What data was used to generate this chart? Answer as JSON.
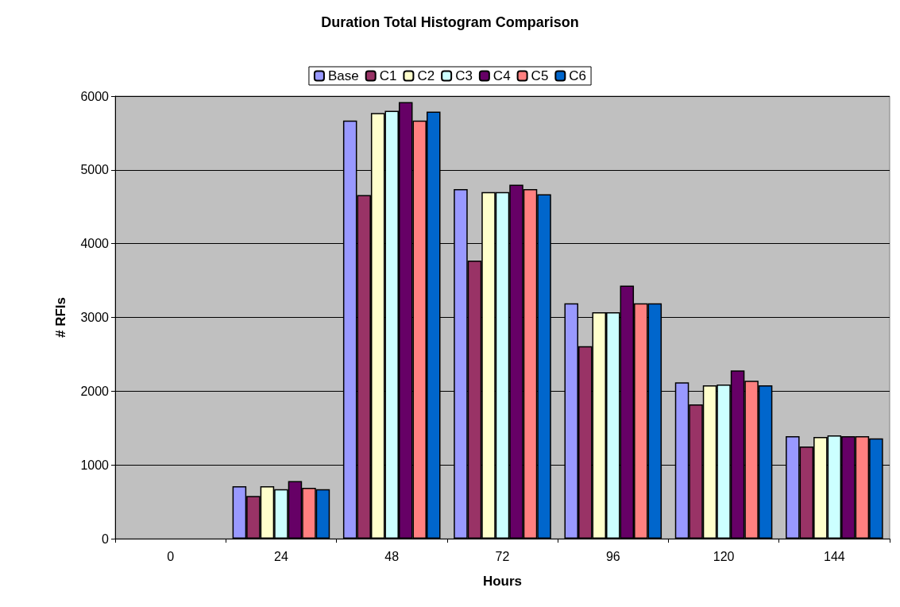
{
  "chart_data": {
    "type": "bar",
    "title": "Duration Total Histogram Comparison",
    "xlabel": "Hours",
    "ylabel": "# RFIs",
    "categories": [
      "0",
      "24",
      "48",
      "72",
      "96",
      "120",
      "144"
    ],
    "series": [
      {
        "name": "Base",
        "color": "#9999ff",
        "values": [
          null,
          710,
          5670,
          4740,
          3190,
          2120,
          1390
        ]
      },
      {
        "name": "C1",
        "color": "#993366",
        "values": [
          null,
          580,
          4660,
          3770,
          2610,
          1820,
          1250
        ]
      },
      {
        "name": "C2",
        "color": "#ffffcc",
        "values": [
          null,
          710,
          5770,
          4700,
          3070,
          2080,
          1380
        ]
      },
      {
        "name": "C3",
        "color": "#ccffff",
        "values": [
          null,
          670,
          5800,
          4700,
          3070,
          2090,
          1400
        ]
      },
      {
        "name": "C4",
        "color": "#660066",
        "values": [
          null,
          780,
          5920,
          4800,
          3430,
          2280,
          1390
        ]
      },
      {
        "name": "C5",
        "color": "#ff8080",
        "values": [
          null,
          690,
          5670,
          4740,
          3190,
          2140,
          1390
        ]
      },
      {
        "name": "C6",
        "color": "#0066cc",
        "values": [
          null,
          670,
          5790,
          4670,
          3190,
          2080,
          1360
        ]
      }
    ],
    "ylim": [
      0,
      6000
    ],
    "yticks": [
      0,
      1000,
      2000,
      3000,
      4000,
      5000,
      6000
    ],
    "grid": "y",
    "legend": "top"
  }
}
